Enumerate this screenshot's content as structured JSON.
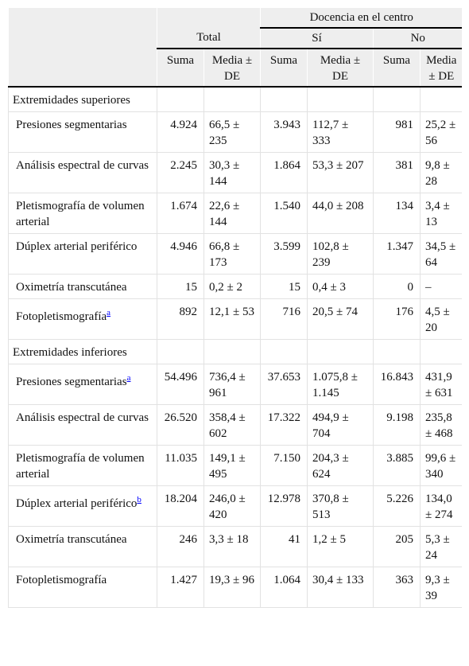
{
  "table": {
    "header": {
      "group": "Docencia en el centro",
      "total": "Total",
      "si": "Sí",
      "no": "No",
      "columns": [
        "Suma",
        "Media ± DE",
        "Suma",
        "Media ± DE",
        "Suma",
        "Media ± DE"
      ]
    },
    "sections": [
      {
        "title": "Extremidades superiores",
        "rows": [
          {
            "label": "Presiones segmentarias",
            "cells": [
              "4.924",
              "66,5 ± 235",
              "3.943",
              "112,7 ± 333",
              "981",
              "25,2 ± 56"
            ]
          },
          {
            "label": "Análisis espectral de curvas",
            "cells": [
              "2.245",
              "30,3 ± 144",
              "1.864",
              "53,3 ± 207",
              "381",
              "9,8 ± 28"
            ]
          },
          {
            "label": "Pletismografía de volumen arterial",
            "cells": [
              "1.674",
              "22,6 ± 144",
              "1.540",
              "44,0 ± 208",
              "134",
              "3,4 ± 13"
            ]
          },
          {
            "label": "Dúplex arterial periférico",
            "cells": [
              "4.946",
              "66,8 ± 173",
              "3.599",
              "102,8 ± 239",
              "1.347",
              "34,5 ± 64"
            ]
          },
          {
            "label": "Oximetría transcutánea",
            "cells": [
              "15",
              "0,2 ± 2",
              "15",
              "0,4 ± 3",
              "0",
              "–"
            ]
          },
          {
            "label": "Fotopletismografía",
            "note": "a",
            "cells": [
              "892",
              "12,1 ± 53",
              "716",
              "20,5 ± 74",
              "176",
              "4,5 ± 20"
            ]
          }
        ]
      },
      {
        "title": "Extremidades inferiores",
        "rows": [
          {
            "label": "Presiones segmentarias",
            "note": "a",
            "cells": [
              "54.496",
              "736,4 ± 961",
              "37.653",
              "1.075,8 ± 1.145",
              "16.843",
              "431,9 ± 631"
            ]
          },
          {
            "label": "Análisis espectral de curvas",
            "cells": [
              "26.520",
              "358,4 ± 602",
              "17.322",
              "494,9 ± 704",
              "9.198",
              "235,8 ± 468"
            ]
          },
          {
            "label": "Pletismografía de volumen arterial",
            "cells": [
              "11.035",
              "149,1 ± 495",
              "7.150",
              "204,3 ± 624",
              "3.885",
              "99,6 ± 340"
            ]
          },
          {
            "label": "Dúplex arterial periférico",
            "note": "b",
            "cells": [
              "18.204",
              "246,0 ± 420",
              "12.978",
              "370,8 ± 513",
              "5.226",
              "134,0 ± 274"
            ]
          },
          {
            "label": "Oximetría transcutánea",
            "cells": [
              "246",
              "3,3 ± 18",
              "41",
              "1,2 ± 5",
              "205",
              "5,3 ± 24"
            ]
          },
          {
            "label": "Fotopletismografía",
            "cells": [
              "1.427",
              "19,3 ± 96",
              "1.064",
              "30,4 ± 133",
              "363",
              "9,3 ± 39"
            ]
          }
        ]
      }
    ]
  }
}
